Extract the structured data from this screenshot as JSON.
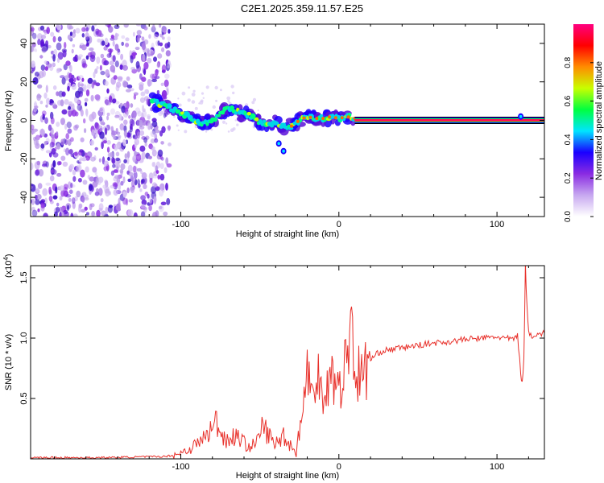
{
  "title": "C2E1.2025.359.11.57.E25",
  "chart_data": [
    {
      "type": "heatmap",
      "title": "C2E1.2025.359.11.57.E25",
      "xlabel": "Height of straight line (km)",
      "ylabel": "Frequency (Hz)",
      "xlim": [
        -195,
        130
      ],
      "ylim": [
        -50,
        50
      ],
      "xticks": [
        -100,
        0,
        100
      ],
      "xtick_labels": [
        "-100",
        "0",
        "100"
      ],
      "yticks": [
        -40,
        -20,
        0,
        20,
        40
      ],
      "ytick_labels": [
        "-40",
        "-20",
        "0",
        "20",
        "40"
      ],
      "noise_region_x": [
        -195,
        -107
      ],
      "carrier_frequency": 0,
      "carrier_start_x": 10,
      "trace": [
        {
          "x": -118,
          "f": 10
        },
        {
          "x": -112,
          "f": 8
        },
        {
          "x": -105,
          "f": 6
        },
        {
          "x": -100,
          "f": 4
        },
        {
          "x": -95,
          "f": 2
        },
        {
          "x": -90,
          "f": 0
        },
        {
          "x": -85,
          "f": -2
        },
        {
          "x": -80,
          "f": 0
        },
        {
          "x": -75,
          "f": 4
        },
        {
          "x": -70,
          "f": 6
        },
        {
          "x": -65,
          "f": 5
        },
        {
          "x": -60,
          "f": 3
        },
        {
          "x": -55,
          "f": 2
        },
        {
          "x": -50,
          "f": -1
        },
        {
          "x": -45,
          "f": -2
        },
        {
          "x": -40,
          "f": -1
        },
        {
          "x": -35,
          "f": -3
        },
        {
          "x": -30,
          "f": -3
        },
        {
          "x": -25,
          "f": 0
        },
        {
          "x": -20,
          "f": 2
        },
        {
          "x": -15,
          "f": 1
        },
        {
          "x": -10,
          "f": 1
        },
        {
          "x": -5,
          "f": 2
        },
        {
          "x": 0,
          "f": 1
        },
        {
          "x": 5,
          "f": 2
        },
        {
          "x": 10,
          "f": 1
        }
      ],
      "isolated_blobs": [
        {
          "x": -35,
          "f": -16
        },
        {
          "x": -38,
          "f": -12
        },
        {
          "x": 115,
          "f": 2
        }
      ],
      "colorbar": {
        "label": "Normalized spectral amplitude",
        "ticks": [
          0.0,
          0.2,
          0.4,
          0.6,
          0.8
        ],
        "tick_labels": [
          "0.0",
          "0.2",
          "0.4",
          "0.6",
          "0.8"
        ],
        "range": [
          0,
          1
        ],
        "colors": [
          "#ffffff",
          "#c7a8f0",
          "#8a2be2",
          "#1a00ff",
          "#00e5ff",
          "#00ff40",
          "#c8ff00",
          "#ff8c00",
          "#ff0000",
          "#ff0080"
        ]
      }
    },
    {
      "type": "line",
      "xlabel": "Height of straight line (km)",
      "ylabel": "SNR (10 * v/v)",
      "y_multiplier_label": "(x10",
      "y_multiplier_exp": "4",
      "y_multiplier_close": ")",
      "xlim": [
        -195,
        130
      ],
      "ylim": [
        0,
        1.6
      ],
      "xticks": [
        -100,
        0,
        100
      ],
      "xtick_labels": [
        "-100",
        "0",
        "100"
      ],
      "yticks": [
        0.5,
        1.0,
        1.5
      ],
      "ytick_labels": [
        "0.5",
        "1.0",
        "1.5"
      ],
      "series": [
        {
          "name": "SNR",
          "color": "#e8302a",
          "x": [
            -195,
            -150,
            -110,
            -105,
            -100,
            -95,
            -90,
            -85,
            -80,
            -78,
            -75,
            -70,
            -65,
            -60,
            -55,
            -50,
            -48,
            -45,
            -40,
            -35,
            -30,
            -27,
            -25,
            -22,
            -20,
            -17,
            -15,
            -13,
            -10,
            -8,
            -5,
            -2,
            0,
            3,
            5,
            8,
            10,
            12,
            15,
            18,
            20,
            25,
            30,
            40,
            50,
            60,
            70,
            80,
            90,
            100,
            105,
            110,
            113,
            115,
            116,
            117,
            118,
            119,
            120,
            122,
            125,
            130
          ],
          "y": [
            0.01,
            0.01,
            0.02,
            0.03,
            0.05,
            0.08,
            0.12,
            0.18,
            0.25,
            0.32,
            0.22,
            0.15,
            0.2,
            0.13,
            0.1,
            0.18,
            0.3,
            0.2,
            0.12,
            0.2,
            0.1,
            0.05,
            0.25,
            0.45,
            0.8,
            0.55,
            0.4,
            0.78,
            0.6,
            0.5,
            0.85,
            0.55,
            0.58,
            0.7,
            0.85,
            1.18,
            0.75,
            0.7,
            0.68,
            0.78,
            0.82,
            0.88,
            0.9,
            0.92,
            0.94,
            0.96,
            0.97,
            0.99,
            1.0,
            1.01,
            1.0,
            0.99,
            1.02,
            0.72,
            0.62,
            0.85,
            1.6,
            1.25,
            1.05,
            1.02,
            1.03,
            1.04
          ]
        }
      ]
    }
  ]
}
